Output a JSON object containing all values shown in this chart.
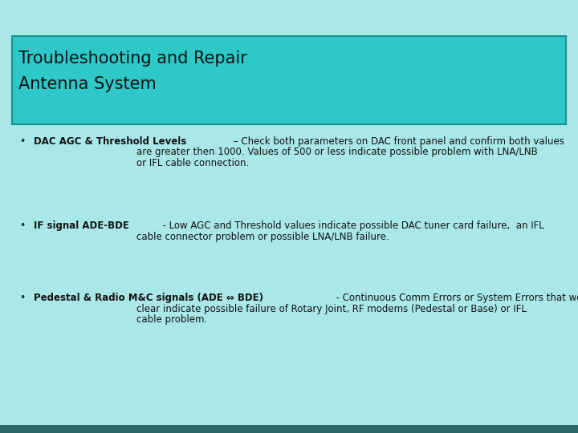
{
  "title_line1": "Troubleshooting and Repair",
  "title_line2": "Antenna System",
  "title_bg_color": "#2ec8c8",
  "title_border_color": "#1a9090",
  "bg_color": "#aae8e8",
  "bottom_bar_color": "#2a6868",
  "bullet_items": [
    {
      "bold_part": "DAC AGC & Threshold Levels",
      "rest_line1": " – Check both parameters on DAC front panel and confirm both values",
      "rest_cont": [
        "are greater then 1000. Values of 500 or less indicate possible problem with LNA/LNB",
        "or IFL cable connection."
      ]
    },
    {
      "bold_part": "IF signal ADE-BDE",
      "rest_line1": "  - Low AGC and Threshold values indicate possible DAC tuner card failure,  an IFL",
      "rest_cont": [
        "cable connector problem or possible LNA/LNB failure."
      ]
    },
    {
      "bold_part": "Pedestal & Radio M&C signals (ADE ⇔ BDE)",
      "rest_line1": "  - Continuous Comm Errors or System Errors that won’t",
      "rest_cont": [
        "clear indicate possible failure of Rotary Joint, RF modems (Pedestal or Base) or IFL",
        "cable problem."
      ]
    }
  ],
  "title_fontsize": 15,
  "body_fontsize": 8.5,
  "bullet_color": "#222222",
  "text_color": "#111111",
  "title_text_color": "#111111"
}
